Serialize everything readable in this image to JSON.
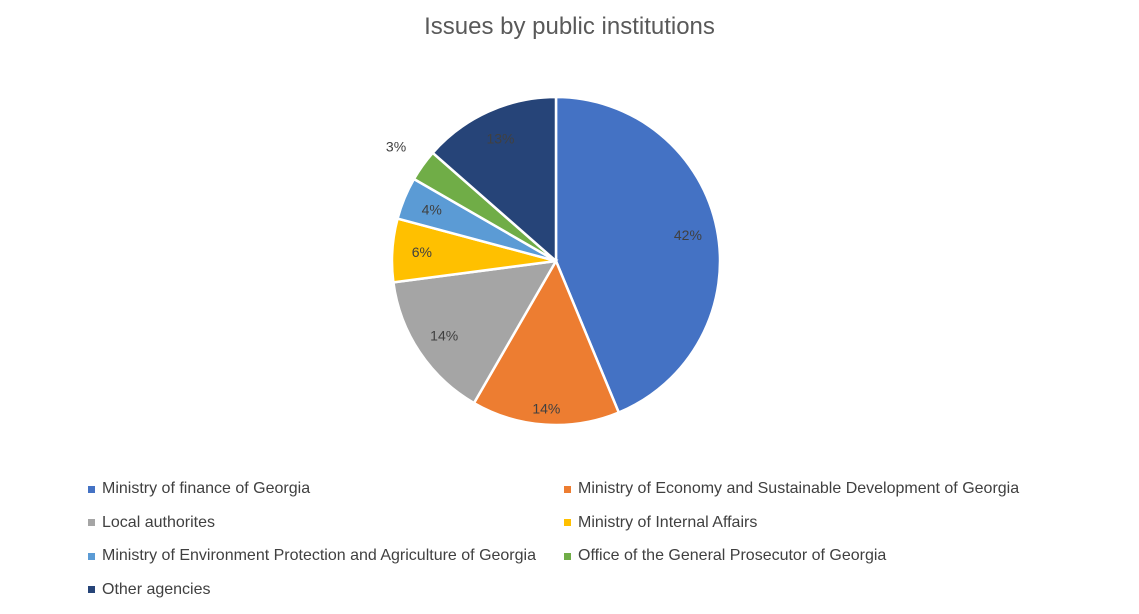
{
  "chart_data": {
    "type": "pie",
    "title": "Issues by public institutions",
    "categories": [
      "Ministry of finance of Georgia",
      "Ministry of Economy and Sustainable Development of Georgia",
      "Local authorites",
      "Ministry of Internal Affairs",
      "Ministry of Environment Protection and Agriculture of Georgia",
      "Office of the General Prosecutor of Georgia",
      "Other agencies"
    ],
    "values": [
      42,
      14,
      14,
      6,
      4,
      3,
      13
    ],
    "labels": [
      "42%",
      "14%",
      "14%",
      "6%",
      "4%",
      "3%",
      "13%"
    ],
    "colors": [
      "#4472C4",
      "#ED7D31",
      "#A5A5A5",
      "#FFC000",
      "#5B9BD5",
      "#70AD47",
      "#264478"
    ],
    "legend_position": "bottom"
  }
}
